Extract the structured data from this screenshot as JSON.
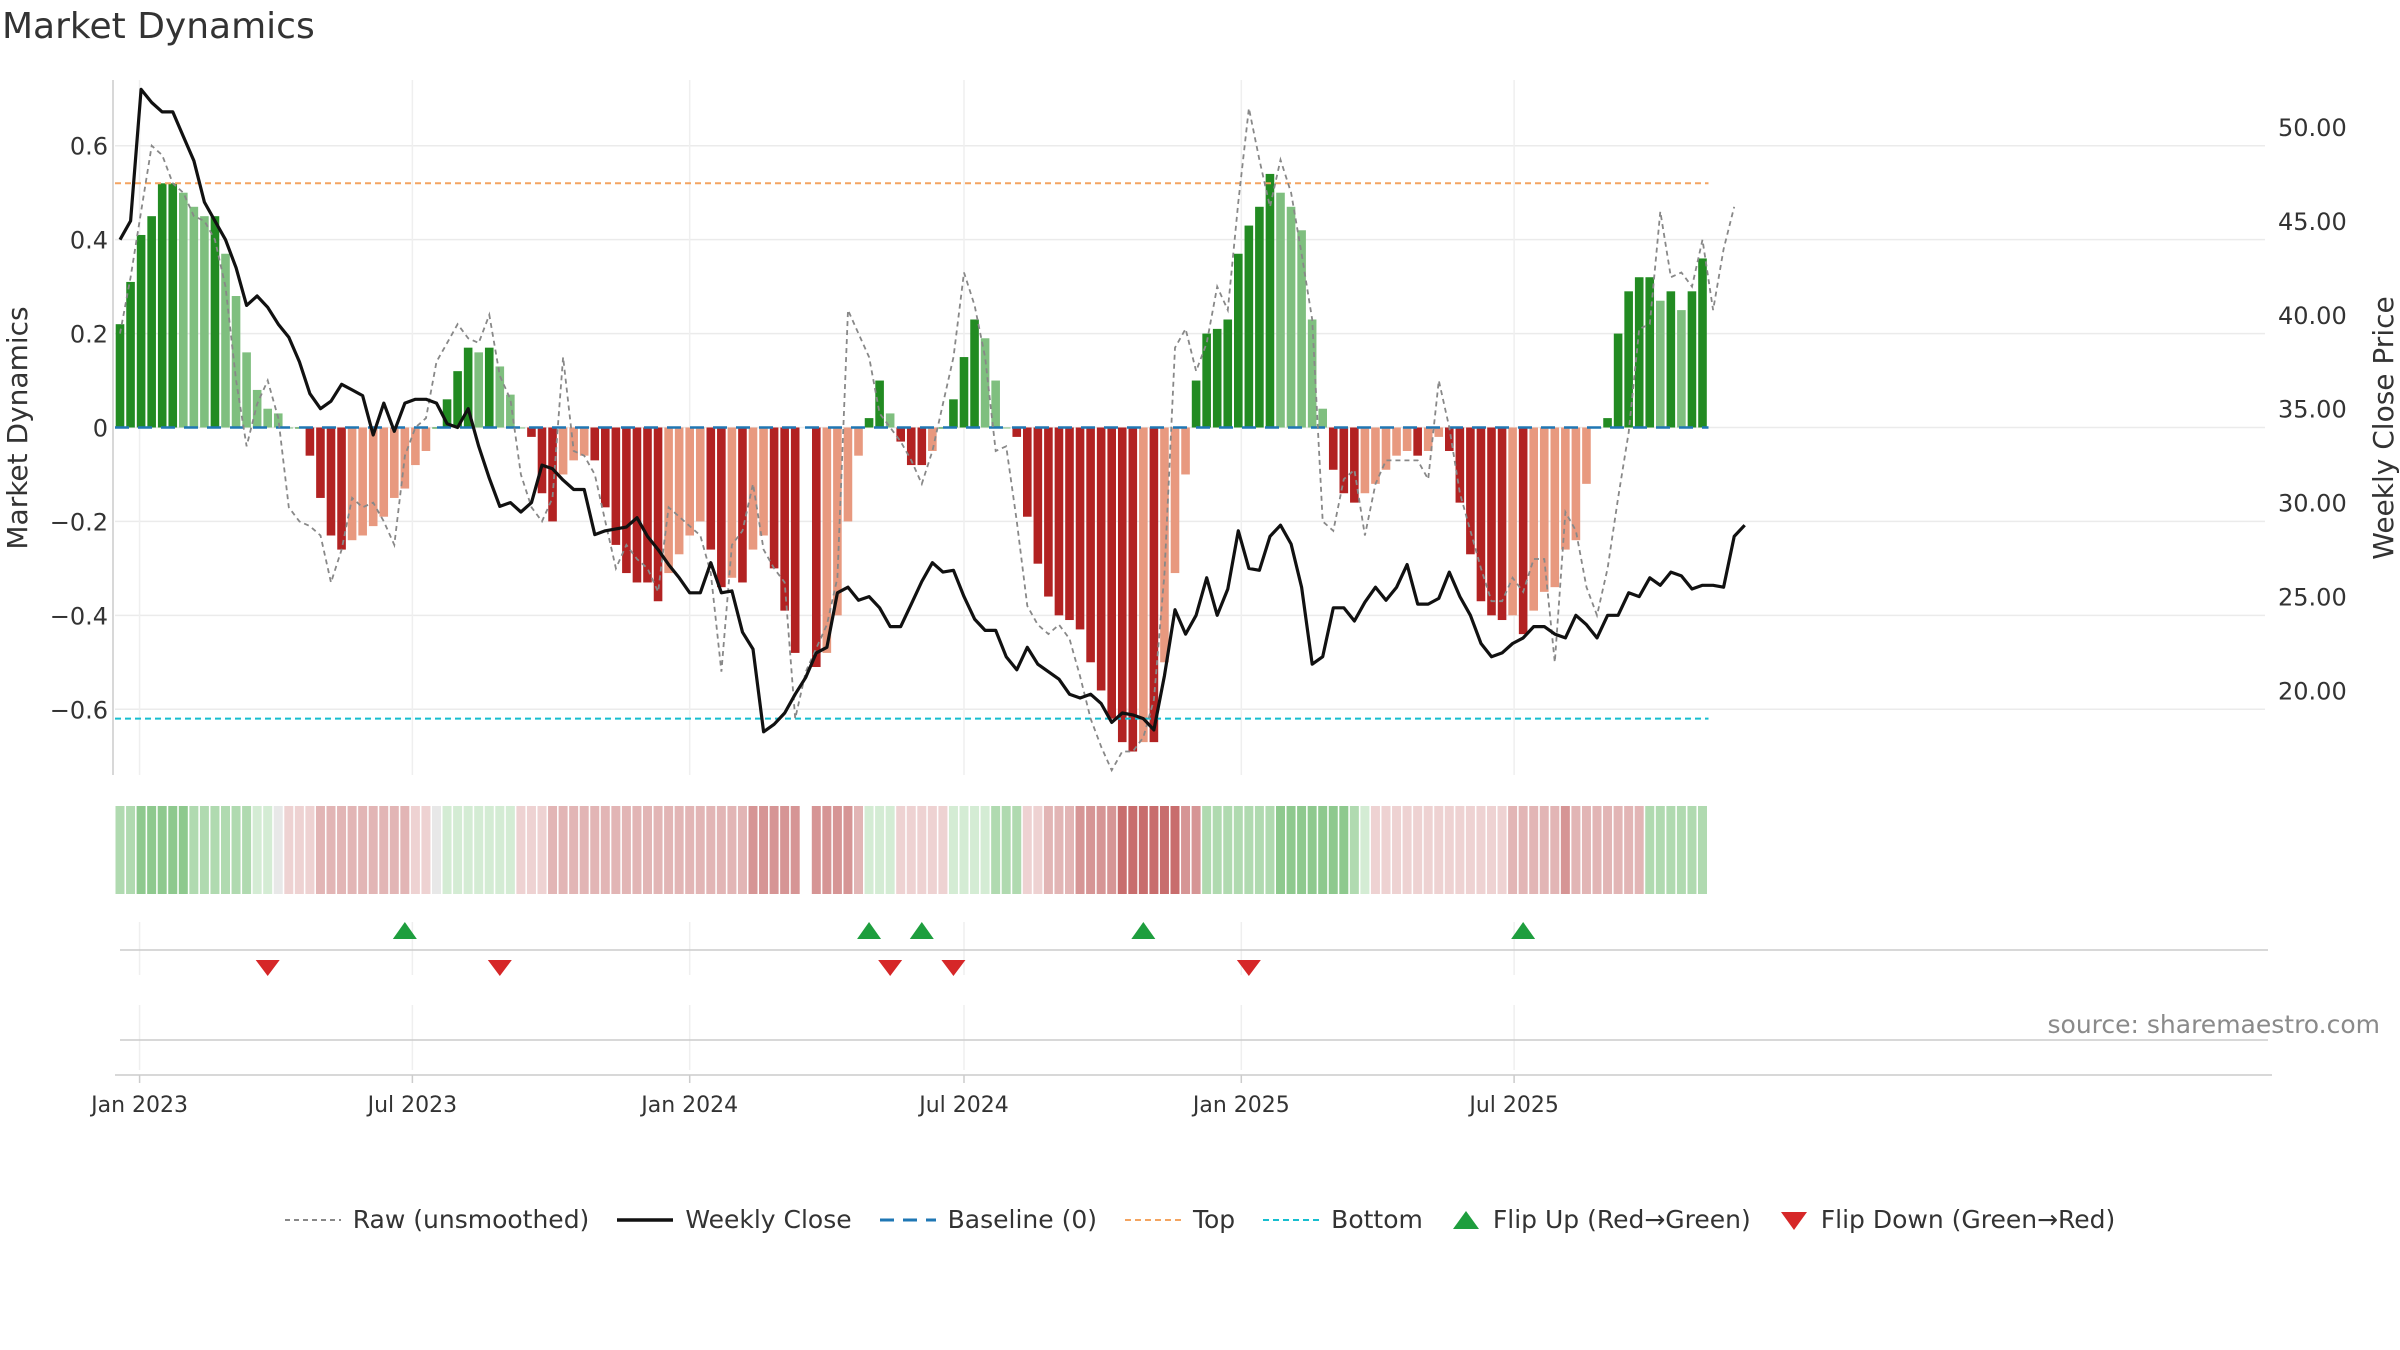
{
  "title": "Market Dynamics",
  "source": "source: sharemaestro.com",
  "colors": {
    "strong_green": "#228b22",
    "light_green": "#7fbf7f",
    "strong_red": "#b22222",
    "light_red": "#e8997f",
    "close_line": "#111111",
    "raw_line": "#888888",
    "baseline": "#1f77b4",
    "top": "#f4a460",
    "bottom": "#17becf",
    "flip_up": "#1e9e3e",
    "flip_down": "#d62728"
  },
  "legend": [
    {
      "key": "raw",
      "label": "Raw (unsmoothed)"
    },
    {
      "key": "close",
      "label": "Weekly Close"
    },
    {
      "key": "baseline",
      "label": "Baseline (0)"
    },
    {
      "key": "top",
      "label": "Top"
    },
    {
      "key": "bottom",
      "label": "Bottom"
    },
    {
      "key": "flip_up",
      "label": "Flip Up (Red→Green)"
    },
    {
      "key": "flip_down",
      "label": "Flip Down (Green→Red)"
    }
  ],
  "chart_data": {
    "type": "bar",
    "start_date": "2022-12-19",
    "interval": "weekly",
    "ylabel": "Market Dynamics",
    "y2label": "Weekly Close Price",
    "ylim": [
      -0.74,
      0.74
    ],
    "y2lim": [
      15.5,
      52.5
    ],
    "yticks": [
      0.6,
      0.4,
      0.2,
      0,
      -0.2,
      -0.4,
      -0.6
    ],
    "ytick_labels": [
      "0.6",
      "0.4",
      "0.2",
      "0",
      "−0.2",
      "−0.4",
      "−0.6"
    ],
    "y2ticks": [
      50,
      45,
      40,
      35,
      30,
      25,
      20
    ],
    "y2tick_labels": [
      "50.00",
      "45.00",
      "40.00",
      "35.00",
      "30.00",
      "25.00",
      "20.00"
    ],
    "xticks": [
      {
        "label": "Jan 2023",
        "date": "2023-01-01"
      },
      {
        "label": "Jul 2023",
        "date": "2023-07-01"
      },
      {
        "label": "Jan 2024",
        "date": "2024-01-01"
      },
      {
        "label": "Jul 2024",
        "date": "2024-07-01"
      },
      {
        "label": "Jan 2025",
        "date": "2025-01-01"
      },
      {
        "label": "Jul 2025",
        "date": "2025-07-01"
      }
    ],
    "top_level": 0.52,
    "bottom_level": -0.62,
    "baseline": 0,
    "grid": true,
    "legend_position": "bottom",
    "momentum": [
      0.22,
      0.31,
      0.41,
      0.45,
      0.52,
      0.52,
      0.5,
      0.47,
      0.45,
      0.45,
      0.37,
      0.28,
      0.16,
      0.08,
      0.04,
      0.03,
      0,
      0,
      -0.06,
      -0.15,
      -0.23,
      -0.26,
      -0.24,
      -0.23,
      -0.21,
      -0.19,
      -0.15,
      -0.13,
      -0.08,
      -0.05,
      0,
      0.06,
      0.12,
      0.17,
      0.16,
      0.17,
      0.13,
      0.07,
      0,
      -0.02,
      -0.14,
      -0.2,
      -0.1,
      -0.07,
      -0.06,
      -0.07,
      -0.17,
      -0.25,
      -0.31,
      -0.33,
      -0.33,
      -0.37,
      -0.31,
      -0.27,
      -0.23,
      -0.2,
      -0.26,
      -0.34,
      -0.32,
      -0.33,
      -0.26,
      -0.23,
      -0.3,
      -0.39,
      -0.48,
      null,
      -0.51,
      -0.48,
      -0.4,
      -0.2,
      -0.06,
      0.02,
      0.1,
      0.03,
      -0.03,
      -0.08,
      -0.08,
      -0.05,
      0,
      0.06,
      0.15,
      0.23,
      0.19,
      0.1,
      0,
      -0.02,
      -0.19,
      -0.29,
      -0.36,
      -0.4,
      -0.41,
      -0.43,
      -0.5,
      -0.56,
      -0.62,
      -0.67,
      -0.69,
      -0.67,
      -0.67,
      -0.5,
      -0.31,
      -0.1,
      0.1,
      0.2,
      0.21,
      0.23,
      0.37,
      0.43,
      0.47,
      0.54,
      0.5,
      0.47,
      0.42,
      0.23,
      0.04,
      -0.09,
      -0.14,
      -0.16,
      -0.14,
      -0.12,
      -0.09,
      -0.06,
      -0.05,
      -0.06,
      -0.05,
      -0.02,
      -0.05,
      -0.16,
      -0.27,
      -0.37,
      -0.4,
      -0.41,
      -0.4,
      -0.44,
      -0.39,
      -0.35,
      -0.34,
      -0.26,
      -0.24,
      -0.12,
      0,
      0.02,
      0.2,
      0.29,
      0.32,
      0.32,
      0.27,
      0.29,
      0.25,
      0.29,
      0.36
    ],
    "raw": [
      0.2,
      0.32,
      0.46,
      0.6,
      0.58,
      0.52,
      0.5,
      0.45,
      0.44,
      0.4,
      0.3,
      0.1,
      -0.04,
      0.05,
      0.1,
      0.02,
      -0.17,
      -0.2,
      -0.21,
      -0.23,
      -0.33,
      -0.26,
      -0.15,
      -0.17,
      -0.16,
      -0.2,
      -0.25,
      -0.06,
      0,
      0.02,
      0.14,
      0.18,
      0.22,
      0.19,
      0.18,
      0.24,
      0.11,
      0.06,
      -0.1,
      -0.17,
      -0.2,
      -0.15,
      0.15,
      -0.05,
      -0.06,
      -0.1,
      -0.2,
      -0.3,
      -0.25,
      -0.28,
      -0.3,
      -0.35,
      -0.17,
      -0.19,
      -0.21,
      -0.23,
      -0.31,
      -0.52,
      -0.25,
      -0.22,
      -0.12,
      -0.26,
      -0.3,
      -0.33,
      -0.62,
      -0.52,
      -0.47,
      -0.42,
      -0.32,
      0.25,
      0.2,
      0.15,
      0.03,
      0,
      -0.03,
      -0.07,
      -0.12,
      -0.05,
      0.05,
      0.15,
      0.33,
      0.26,
      0.15,
      -0.05,
      -0.04,
      -0.2,
      -0.38,
      -0.42,
      -0.44,
      -0.42,
      -0.45,
      -0.53,
      -0.62,
      -0.68,
      -0.73,
      -0.69,
      -0.69,
      -0.66,
      -0.58,
      -0.31,
      0.17,
      0.21,
      0.12,
      0.18,
      0.3,
      0.25,
      0.48,
      0.68,
      0.57,
      0.47,
      0.57,
      0.5,
      0.37,
      0.23,
      -0.2,
      -0.22,
      -0.11,
      -0.09,
      -0.23,
      -0.12,
      -0.07,
      -0.07,
      -0.07,
      -0.07,
      -0.11,
      0.1,
      0,
      -0.14,
      -0.22,
      -0.3,
      -0.37,
      -0.37,
      -0.32,
      -0.35,
      -0.28,
      -0.28,
      -0.5,
      -0.18,
      -0.22,
      -0.34,
      -0.4,
      -0.3,
      -0.15,
      -0.01,
      0.21,
      0.22,
      0.46,
      0.32,
      0.33,
      0.3,
      0.4,
      0.25,
      0.38,
      0.47
    ],
    "close": [
      44,
      45,
      52,
      51.3,
      50.8,
      50.8,
      49.5,
      48.2,
      46,
      45,
      44,
      42.5,
      40.5,
      41,
      40.4,
      39.5,
      38.8,
      37.5,
      35.8,
      35,
      35.4,
      36.3,
      36,
      35.7,
      33.6,
      35.3,
      33.8,
      35.3,
      35.5,
      35.5,
      35.3,
      34.2,
      34,
      35,
      33,
      31.3,
      29.8,
      30,
      29.5,
      30,
      32,
      31.8,
      31.2,
      30.7,
      30.7,
      28.3,
      28.5,
      28.6,
      28.7,
      29.2,
      28.2,
      27.5,
      26.7,
      26,
      25.2,
      25.2,
      26.8,
      25.2,
      25.3,
      23.1,
      22.2,
      17.8,
      18.2,
      18.8,
      19.8,
      20.7,
      22,
      22.3,
      25.2,
      25.5,
      24.8,
      25,
      24.4,
      23.4,
      23.4,
      24.6,
      25.8,
      26.8,
      26.3,
      26.4,
      25,
      23.8,
      23.2,
      23.2,
      21.8,
      21.1,
      22.3,
      21.4,
      21,
      20.6,
      19.8,
      19.6,
      19.8,
      19.3,
      18.3,
      18.8,
      18.7,
      18.5,
      17.9,
      20.8,
      24.3,
      23,
      24,
      26,
      24,
      25.4,
      28.5,
      26.5,
      26.4,
      28.2,
      28.8,
      27.8,
      25.5,
      21.4,
      21.8,
      24.4,
      24.4,
      23.7,
      24.7,
      25.5,
      24.8,
      25.5,
      26.7,
      24.6,
      24.6,
      24.9,
      26.3,
      25,
      24,
      22.5,
      21.8,
      22,
      22.5,
      22.8,
      23.4,
      23.4,
      23,
      22.8,
      24,
      23.5,
      22.8,
      24,
      24,
      25.2,
      25,
      26,
      25.6,
      26.3,
      26.1,
      25.4,
      25.6,
      25.6,
      25.5,
      28.2,
      28.8
    ],
    "color_tier": [
      2,
      2,
      3,
      3,
      3,
      3,
      3,
      2,
      2,
      2,
      2,
      2,
      2,
      1,
      1,
      0,
      -1,
      -1,
      -1,
      -2,
      -2,
      -2,
      -2,
      -2,
      -2,
      -2,
      -2,
      -2,
      -1,
      -1,
      0,
      1,
      1,
      1,
      1,
      1,
      1,
      1,
      -1,
      -1,
      -1,
      -2,
      -2,
      -2,
      -2,
      -2,
      -2,
      -2,
      -2,
      -2,
      -2,
      -2,
      -2,
      -2,
      -2,
      -2,
      -2,
      -2,
      -2,
      -2,
      -3,
      -3,
      -3,
      -3,
      -3,
      null,
      -3,
      -3,
      -3,
      -3,
      -2,
      1,
      1,
      1,
      -1,
      -1,
      -1,
      -1,
      -1,
      1,
      1,
      1,
      1,
      2,
      2,
      2,
      -1,
      -1,
      -2,
      -2,
      -2,
      -3,
      -3,
      -3,
      -3,
      -4,
      -4,
      -4,
      -4,
      -4,
      -4,
      -3,
      -3,
      2,
      2,
      2,
      2,
      2,
      2,
      2,
      3,
      3,
      3,
      3,
      3,
      3,
      3,
      2,
      1,
      -1,
      -1,
      -1,
      -1,
      -1,
      -1,
      -1,
      -1,
      -1,
      -1,
      -1,
      -1,
      -1,
      -2,
      -2,
      -2,
      -2,
      -2,
      -3,
      -2,
      -2,
      -2,
      -2,
      -2,
      -2,
      -2,
      2,
      2,
      2,
      2,
      2,
      2,
      2,
      2,
      2,
      2,
      2,
      2
    ],
    "flips_up": [
      "2023-06-26",
      "2024-04-29",
      "2024-06-03",
      "2024-10-28",
      "2025-07-07"
    ],
    "flips_down": [
      "2023-03-27",
      "2023-08-28",
      "2024-05-13",
      "2024-06-24",
      "2025-01-06"
    ]
  }
}
